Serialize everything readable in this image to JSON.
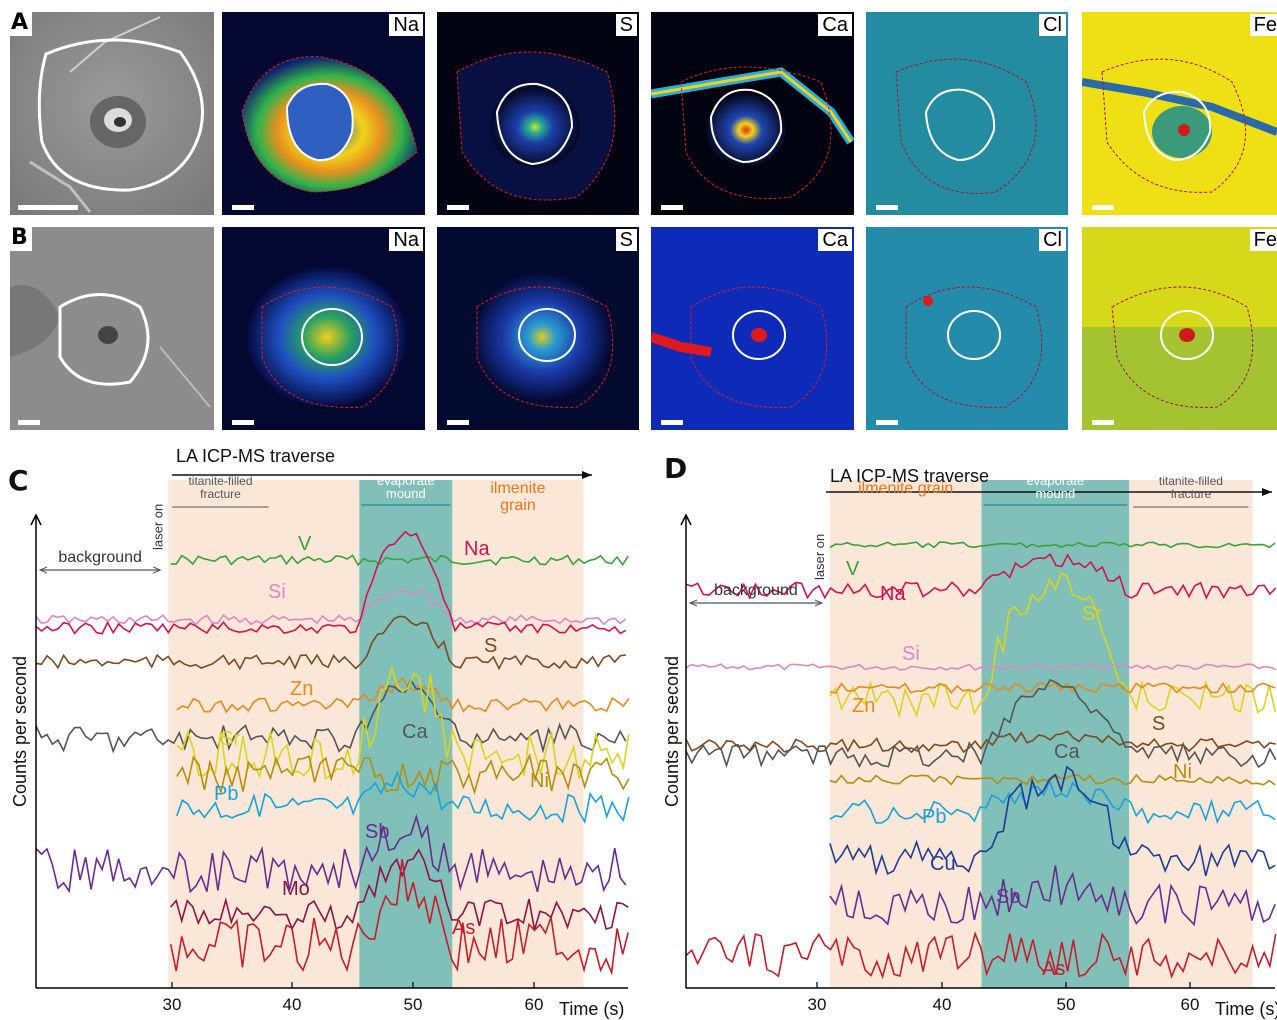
{
  "panel_a": {
    "label": "A",
    "elements": [
      "Na",
      "S",
      "Ca",
      "Cl",
      "Fe"
    ]
  },
  "panel_b": {
    "label": "B",
    "elements": [
      "Na",
      "S",
      "Ca",
      "Cl",
      "Fe"
    ]
  },
  "colors": {
    "V": "#3aa335",
    "Na": "#d2134f",
    "Si": "#d889c4",
    "S": "#7b4a1e",
    "Zn": "#e48a1c",
    "Ca": "#555555",
    "Sr": "#d6d61e",
    "Ni": "#b58d0e",
    "Pb": "#17a2dc",
    "Cu": "#1f3b94",
    "Sb": "#6a2b8e",
    "Mo": "#8a1446",
    "As": "#c41e2a",
    "fracture_band": "#fbe7d7",
    "evaporate_band": "#80c0b8",
    "evaporate_text": "#1f8c8c",
    "ilmenite_text": "#e8741e"
  },
  "chart_data": [
    {
      "id": "C",
      "type": "line",
      "panel_label": "C",
      "title": "LA ICP-MS traverse",
      "ylabel": "Counts per second",
      "xlabel": "Time (s)",
      "x_ticks": [
        "30",
        "40",
        "50",
        "60"
      ],
      "x_range": [
        19.5,
        68
      ],
      "laser_on": "laser on",
      "background_label": "background",
      "bands": [
        {
          "name": "titanite-filled fracture",
          "label1": "titanite-filled",
          "label2": "fracture",
          "x0": 30.3,
          "x1": 45.9,
          "kind": "fracture"
        },
        {
          "name": "evaporate mound",
          "label1": "evaporate",
          "label2": "mound",
          "x0": 45.9,
          "x1": 53.5,
          "kind": "evaporate"
        },
        {
          "name": "ilmenite grain",
          "label1": "ilmenite",
          "label2": "grain",
          "x0": 53.5,
          "x1": 64.2,
          "kind": "ilmenite"
        }
      ],
      "series": [
        {
          "name": "V",
          "base": 560,
          "start": 30.5,
          "amp": 5,
          "peak": 0,
          "pre": 0
        },
        {
          "name": "Si",
          "base": 620,
          "start": 19.5,
          "amp": 5,
          "peak": -30,
          "pre": 0
        },
        {
          "name": "Na",
          "base": 628,
          "start": 19.5,
          "amp": 6,
          "peak": -95,
          "pre": 0
        },
        {
          "name": "S",
          "base": 662,
          "start": 19.5,
          "amp": 7,
          "peak": -40,
          "pre": 0
        },
        {
          "name": "Zn",
          "base": 705,
          "start": 31.0,
          "amp": 7,
          "peak": -20,
          "pre": 0
        },
        {
          "name": "Ca",
          "base": 738,
          "start": 19.5,
          "amp": 14,
          "peak": -50,
          "pre": 0
        },
        {
          "name": "Sr",
          "base": 755,
          "start": 31.0,
          "amp": 25,
          "peak": -80,
          "pre": 0
        },
        {
          "name": "Ni",
          "base": 775,
          "start": 31.0,
          "amp": 20,
          "peak": 0,
          "pre": 0
        },
        {
          "name": "Pb",
          "base": 808,
          "start": 31.0,
          "amp": 14,
          "peak": -25,
          "pre": 0
        },
        {
          "name": "Sb",
          "base": 870,
          "start": 19.5,
          "amp": 22,
          "peak": -40,
          "pre": 0
        },
        {
          "name": "Mo",
          "base": 915,
          "start": 30.5,
          "amp": 16,
          "peak": -55,
          "pre": 0
        },
        {
          "name": "As",
          "base": 945,
          "start": 30.5,
          "amp": 28,
          "peak": -60,
          "pre": 0
        }
      ],
      "labels": {
        "V": "V",
        "Si": "Si",
        "Na": "Na",
        "S": "S",
        "Zn": "Zn",
        "Ca": "Ca",
        "Sr": "Sr",
        "Ni": "Ni",
        "Pb": "Pb",
        "Sb": "Sb",
        "Mo": "Mo",
        "As": "As"
      }
    },
    {
      "id": "D",
      "type": "line",
      "panel_label": "D",
      "title": "LA ICP-MS traverse",
      "ylabel": "Counts per second",
      "xlabel": "Time (s)",
      "x_ticks": [
        "30",
        "40",
        "50",
        "60"
      ],
      "x_range": [
        20,
        66
      ],
      "laser_on": "laser on",
      "background_label": "background",
      "bands": [
        {
          "name": "ilmenite grain",
          "label1": "ilmenite grain",
          "label2": "",
          "x0": 31.2,
          "x1": 43.0,
          "kind": "ilmenite"
        },
        {
          "name": "evaporate mound",
          "label1": "evaporate",
          "label2": "mound",
          "x0": 43.0,
          "x1": 54.5,
          "kind": "evaporate"
        },
        {
          "name": "titanite-filled fracture",
          "label1": "titanite-filled",
          "label2": "fracture",
          "x0": 54.5,
          "x1": 64.1,
          "kind": "fracture"
        }
      ],
      "series": [
        {
          "name": "V",
          "base": 545,
          "start": 31.2,
          "amp": 3,
          "peak": 0,
          "pre": 0
        },
        {
          "name": "Na",
          "base": 590,
          "start": 20,
          "amp": 8,
          "peak": -30,
          "pre": 0
        },
        {
          "name": "Sr",
          "base": 700,
          "start": 31.2,
          "amp": 18,
          "peak": -120,
          "pre": 0
        },
        {
          "name": "Si",
          "base": 667,
          "start": 20,
          "amp": 3,
          "peak": 0,
          "pre": 0
        },
        {
          "name": "Zn",
          "base": 688,
          "start": 31.2,
          "amp": 5,
          "peak": 0,
          "pre": 0
        },
        {
          "name": "S",
          "base": 745,
          "start": 20,
          "amp": 7,
          "peak": -10,
          "pre": 0
        },
        {
          "name": "Ca",
          "base": 755,
          "start": 20,
          "amp": 12,
          "peak": -70,
          "pre": 0
        },
        {
          "name": "Ni",
          "base": 780,
          "start": 31.2,
          "amp": 5,
          "peak": 0,
          "pre": 0
        },
        {
          "name": "Pb",
          "base": 812,
          "start": 31.2,
          "amp": 12,
          "peak": -20,
          "pre": 0
        },
        {
          "name": "Cu",
          "base": 860,
          "start": 31.2,
          "amp": 18,
          "peak": -80,
          "pre": 0
        },
        {
          "name": "Sb",
          "base": 905,
          "start": 31.2,
          "amp": 20,
          "peak": -20,
          "pre": 0
        },
        {
          "name": "As",
          "base": 955,
          "start": 20,
          "amp": 22,
          "peak": 0,
          "pre": 0
        }
      ],
      "labels": {
        "V": "V",
        "Na": "Na",
        "Sr": "Sr",
        "Si": "Si",
        "Zn": "Zn",
        "S": "S",
        "Ca": "Ca",
        "Ni": "Ni",
        "Pb": "Pb",
        "Cu": "Cu",
        "Sb": "Sb",
        "As": "As"
      }
    }
  ]
}
